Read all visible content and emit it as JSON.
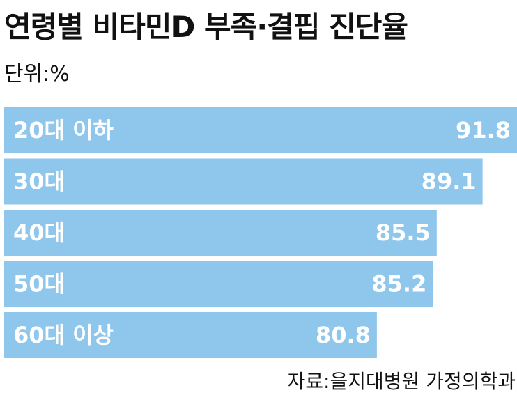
{
  "chart_data": {
    "type": "bar",
    "orientation": "horizontal",
    "title": "연령별 비타민D 부족·결핍 진단율",
    "unit_label": "단위:%",
    "source": "자료:을지대병원 가정의학과",
    "categories": [
      "20대 이하",
      "30대",
      "40대",
      "50대",
      "60대 이상"
    ],
    "values": [
      91.8,
      89.1,
      85.5,
      85.2,
      80.8
    ],
    "value_labels": [
      "91.8",
      "89.1",
      "85.5",
      "85.2",
      "80.8"
    ],
    "bar_color": "#8ec6ec",
    "label_color": "#ffffff",
    "grid": false,
    "legend": "none"
  }
}
